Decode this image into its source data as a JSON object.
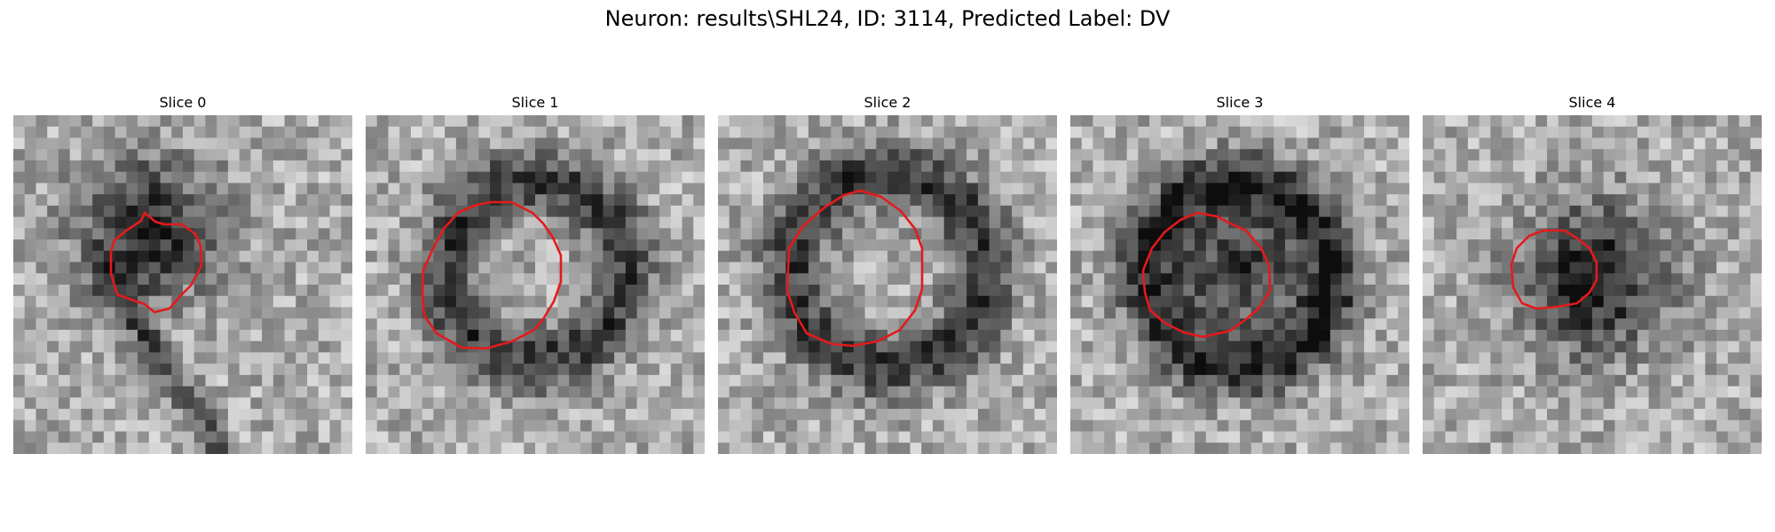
{
  "figure": {
    "title": "Neuron: results\\SHL24, ID: 3114, Predicted Label: DV"
  },
  "overlay_color": "#e41a1c",
  "panels": [
    {
      "title": "Slice 0"
    },
    {
      "title": "Slice 1"
    },
    {
      "title": "Slice 2"
    },
    {
      "title": "Slice 3"
    },
    {
      "title": "Slice 4"
    }
  ]
}
